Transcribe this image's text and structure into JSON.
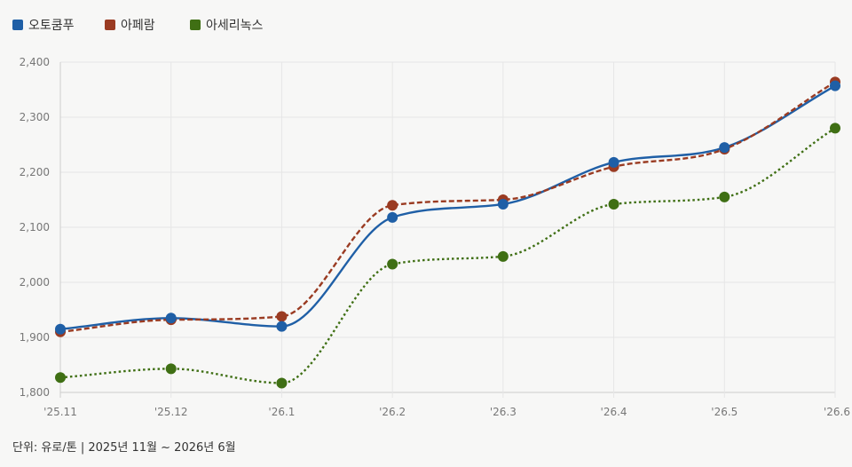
{
  "chart_data": {
    "type": "line",
    "categories": [
      "'25.11",
      "'25.12",
      "'26.1",
      "'26.2",
      "'26.3",
      "'26.4",
      "'26.5",
      "'26.6"
    ],
    "ylim": [
      1800,
      2400
    ],
    "yticks": [
      "1,800",
      "1,900",
      "2,000",
      "2,100",
      "2,200",
      "2,300",
      "2,400"
    ],
    "grid": true,
    "legend_position": "top-left",
    "series": [
      {
        "name": "오토쿰푸",
        "color": "#1f5fa6",
        "dash": "solid",
        "values": [
          1915,
          1935,
          1920,
          2118,
          2142,
          2218,
          2245,
          2357
        ]
      },
      {
        "name": "아페람",
        "color": "#9a3b22",
        "dash": "dashed",
        "values": [
          1910,
          1932,
          1938,
          2140,
          2150,
          2210,
          2242,
          2364
        ]
      },
      {
        "name": "아세리녹스",
        "color": "#3f6f14",
        "dash": "dotted",
        "values": [
          1827,
          1843,
          1817,
          2033,
          2047,
          2142,
          2155,
          2280
        ]
      }
    ]
  },
  "footer": {
    "unit_text": "단위: 유로/톤 | 2025년 11월 ~ 2026년 6월"
  }
}
